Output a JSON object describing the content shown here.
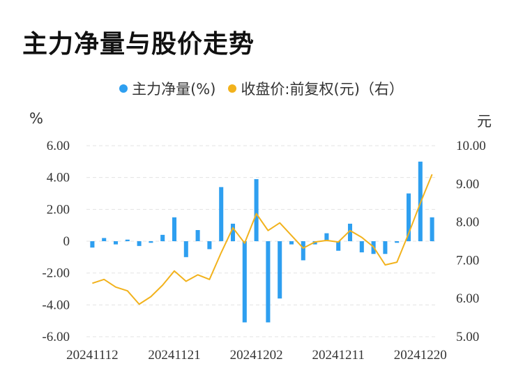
{
  "title": "主力净量与股价走势",
  "left_unit": "%",
  "right_unit": "元",
  "colors": {
    "bar": "#2e9ff0",
    "line": "#f2b21c",
    "grid": "#e3e3e3"
  },
  "chart_data": {
    "type": "bar+line",
    "legend": [
      "主力净量(%)",
      "收盘价:前复权(元)（右）"
    ],
    "x_tick_labels": [
      "20241112",
      "20241121",
      "20241202",
      "20241211",
      "20241220"
    ],
    "x_tick_indices": [
      0,
      7,
      14,
      21,
      28
    ],
    "y_left_ticks": [
      "6.00",
      "4.00",
      "2.00",
      "0",
      "-2.00",
      "-4.00",
      "-6.00"
    ],
    "y_left_lim": [
      -6,
      6
    ],
    "y_right_ticks": [
      "10.00",
      "9.00",
      "8.00",
      "7.00",
      "6.00",
      "5.00"
    ],
    "y_right_lim": [
      5,
      10
    ],
    "series": [
      {
        "name": "主力净量(%)",
        "type": "bar",
        "axis": "left",
        "values": [
          -0.4,
          0.2,
          -0.2,
          0.1,
          -0.3,
          -0.1,
          0.4,
          1.5,
          -1.0,
          0.7,
          -0.5,
          3.4,
          1.1,
          -5.1,
          3.9,
          -5.1,
          -3.6,
          -0.2,
          -1.2,
          -0.2,
          0.5,
          -0.6,
          1.1,
          -0.7,
          -0.8,
          -0.8,
          -0.1,
          3.0,
          5.0,
          1.5
        ]
      },
      {
        "name": "收盘价:前复权(元)（右）",
        "type": "line",
        "axis": "right",
        "values": [
          6.4,
          6.5,
          6.3,
          6.2,
          5.85,
          6.05,
          6.35,
          6.72,
          6.45,
          6.62,
          6.5,
          7.2,
          7.85,
          7.45,
          8.22,
          7.78,
          7.98,
          7.65,
          7.32,
          7.48,
          7.52,
          7.48,
          7.78,
          7.6,
          7.35,
          6.88,
          6.95,
          7.7,
          8.5,
          9.25
        ]
      }
    ]
  }
}
